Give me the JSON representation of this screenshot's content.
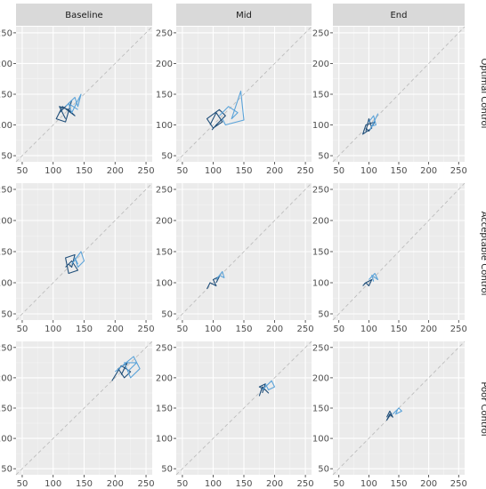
{
  "chart_data": {
    "type": "line",
    "layout": "faceted 3x3 grid",
    "col_strips": [
      "Baseline",
      "Mid",
      "End"
    ],
    "row_strips": [
      "Optimal Control",
      "Acceptable Control",
      "Poor Control"
    ],
    "xlim": [
      40,
      260
    ],
    "ylim": [
      40,
      260
    ],
    "x_ticks": [
      50,
      100,
      150,
      200,
      250
    ],
    "y_ticks": [
      50,
      100,
      150,
      200,
      250
    ],
    "grid": true,
    "reference_line": "dashed y = x diagonal",
    "colors": {
      "panel_bg": "#ebebeb",
      "strip_bg": "#d9d9d9",
      "grid_major": "#ffffff",
      "dark_series": "#1f4e79",
      "light_series": "#5ba3d9",
      "diagonal": "#bdbdbd"
    },
    "panels": [
      {
        "row": 0,
        "col": 0,
        "series": [
          {
            "values": [
              [
                110,
                120
              ],
              [
                130,
                140
              ],
              [
                120,
                105
              ],
              [
                105,
                110
              ],
              [
                115,
                130
              ],
              [
                135,
                115
              ],
              [
                125,
                125
              ],
              [
                110,
                130
              ],
              [
                120,
                110
              ]
            ]
          },
          {
            "values": [
              [
                120,
                130
              ],
              [
                135,
                145
              ],
              [
                140,
                130
              ],
              [
                145,
                150
              ],
              [
                130,
                120
              ],
              [
                125,
                135
              ],
              [
                140,
                125
              ]
            ]
          }
        ]
      },
      {
        "row": 0,
        "col": 1,
        "series": [
          {
            "values": [
              [
                95,
                100
              ],
              [
                105,
                120
              ],
              [
                115,
                105
              ],
              [
                100,
                95
              ],
              [
                90,
                110
              ],
              [
                110,
                125
              ],
              [
                120,
                115
              ],
              [
                105,
                100
              ],
              [
                98,
                92
              ]
            ]
          },
          {
            "values": [
              [
                110,
                115
              ],
              [
                125,
                130
              ],
              [
                140,
                120
              ],
              [
                130,
                110
              ],
              [
                145,
                155
              ],
              [
                150,
                108
              ],
              [
                120,
                100
              ],
              [
                115,
                110
              ]
            ]
          }
        ]
      },
      {
        "row": 0,
        "col": 2,
        "series": [
          {
            "values": [
              [
                95,
                90
              ],
              [
                100,
                110
              ],
              [
                105,
                95
              ],
              [
                90,
                85
              ],
              [
                95,
                100
              ],
              [
                110,
                105
              ],
              [
                100,
                90
              ],
              [
                95,
                95
              ]
            ]
          },
          {
            "values": [
              [
                100,
                105
              ],
              [
                108,
                115
              ],
              [
                112,
                100
              ],
              [
                105,
                98
              ],
              [
                115,
                118
              ],
              [
                102,
                92
              ]
            ]
          }
        ]
      },
      {
        "row": 1,
        "col": 0,
        "series": [
          {
            "values": [
              [
                120,
                125
              ],
              [
                130,
                135
              ],
              [
                140,
                120
              ],
              [
                125,
                115
              ],
              [
                120,
                140
              ],
              [
                135,
                145
              ],
              [
                130,
                125
              ],
              [
                125,
                130
              ]
            ]
          },
          {
            "values": [
              [
                130,
                130
              ],
              [
                145,
                150
              ],
              [
                150,
                135
              ],
              [
                140,
                125
              ],
              [
                135,
                140
              ],
              [
                140,
                130
              ]
            ]
          }
        ]
      },
      {
        "row": 1,
        "col": 1,
        "series": [
          {
            "values": [
              [
                90,
                90
              ],
              [
                95,
                100
              ],
              [
                105,
                95
              ],
              [
                100,
                105
              ],
              [
                110,
                110
              ],
              [
                105,
                100
              ]
            ]
          },
          {
            "values": [
              [
                105,
                105
              ],
              [
                115,
                118
              ],
              [
                118,
                108
              ],
              [
                110,
                112
              ]
            ]
          }
        ]
      },
      {
        "row": 1,
        "col": 2,
        "series": [
          {
            "values": [
              [
                90,
                95
              ],
              [
                95,
                100
              ],
              [
                100,
                95
              ],
              [
                105,
                105
              ],
              [
                95,
                100
              ],
              [
                92,
                98
              ]
            ]
          },
          {
            "values": [
              [
                100,
                105
              ],
              [
                110,
                115
              ],
              [
                115,
                105
              ],
              [
                105,
                112
              ],
              [
                108,
                102
              ]
            ]
          }
        ]
      },
      {
        "row": 2,
        "col": 0,
        "series": [
          {
            "values": [
              [
                195,
                195
              ],
              [
                210,
                220
              ],
              [
                225,
                210
              ],
              [
                215,
                200
              ],
              [
                205,
                215
              ],
              [
                220,
                225
              ],
              [
                210,
                205
              ]
            ]
          },
          {
            "values": [
              [
                200,
                210
              ],
              [
                230,
                235
              ],
              [
                240,
                215
              ],
              [
                225,
                200
              ],
              [
                215,
                225
              ],
              [
                235,
                225
              ],
              [
                220,
                210
              ]
            ]
          }
        ]
      },
      {
        "row": 2,
        "col": 1,
        "series": [
          {
            "values": [
              [
                175,
                170
              ],
              [
                180,
                185
              ],
              [
                190,
                175
              ],
              [
                185,
                180
              ],
              [
                175,
                185
              ],
              [
                185,
                190
              ],
              [
                180,
                175
              ]
            ]
          },
          {
            "values": [
              [
                180,
                180
              ],
              [
                195,
                195
              ],
              [
                200,
                185
              ],
              [
                190,
                180
              ],
              [
                185,
                190
              ]
            ]
          }
        ]
      },
      {
        "row": 2,
        "col": 2,
        "series": [
          {
            "values": [
              [
                130,
                135
              ],
              [
                135,
                145
              ],
              [
                140,
                135
              ],
              [
                135,
                140
              ],
              [
                130,
                130
              ],
              [
                138,
                142
              ]
            ]
          },
          {
            "values": [
              [
                140,
                140
              ],
              [
                150,
                150
              ],
              [
                155,
                145
              ],
              [
                145,
                140
              ],
              [
                148,
                148
              ]
            ]
          }
        ]
      }
    ]
  }
}
